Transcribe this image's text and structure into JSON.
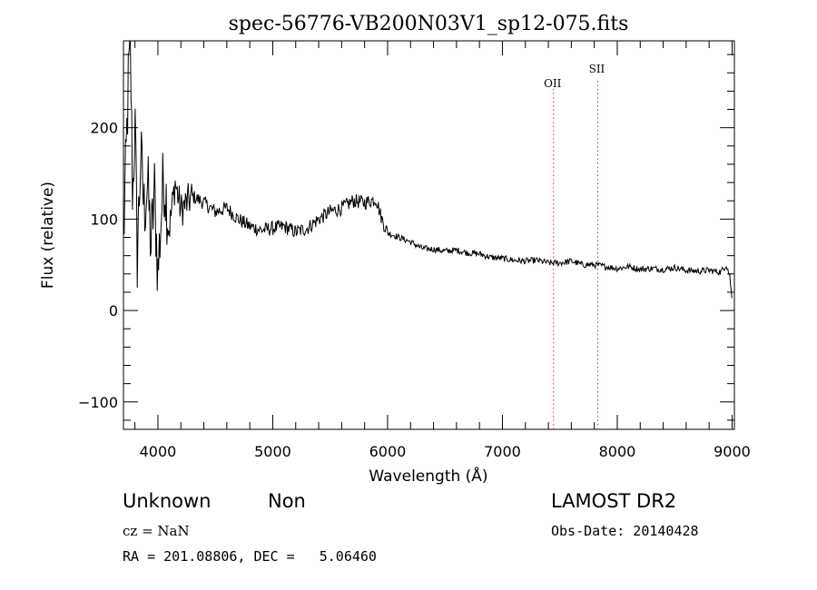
{
  "chart_data": {
    "type": "line",
    "title": "spec-56776-VB200N03V1_sp12-075.fits",
    "xlabel": "Wavelength (Å)",
    "ylabel": "Flux (relative)",
    "xlim": [
      3700,
      9020
    ],
    "ylim": [
      -130,
      295
    ],
    "x_ticks": [
      "4000",
      "5000",
      "6000",
      "7000",
      "8000",
      "9000"
    ],
    "y_ticks": [
      "200",
      "100",
      "0",
      "−100"
    ],
    "grid": false,
    "series": [
      {
        "x": [
          3700,
          3720,
          3740,
          3760,
          3780,
          3800,
          3820,
          3850,
          3880,
          3910,
          3940,
          3970,
          4000,
          4050,
          4100,
          4150,
          4200,
          4300,
          4400,
          4500,
          4600,
          4700,
          4800,
          4900,
          5000,
          5100,
          5200,
          5300,
          5400,
          5500,
          5600,
          5700,
          5800,
          5900,
          5950,
          6000,
          6100,
          6200,
          6300,
          6400,
          6500,
          6600,
          6700,
          6800,
          6900,
          7000,
          7100,
          7200,
          7300,
          7400,
          7500,
          7600,
          7700,
          7800,
          7900,
          8000,
          8100,
          8200,
          8300,
          8400,
          8500,
          8600,
          8700,
          8800,
          8900,
          8950,
          8980,
          9000
        ],
        "y": [
          80,
          150,
          240,
          300,
          120,
          210,
          60,
          170,
          110,
          140,
          70,
          130,
          40,
          150,
          90,
          140,
          110,
          125,
          118,
          108,
          112,
          100,
          92,
          88,
          90,
          92,
          86,
          90,
          100,
          108,
          112,
          120,
          118,
          122,
          100,
          85,
          80,
          75,
          68,
          67,
          65,
          66,
          63,
          62,
          58,
          57,
          55,
          54,
          55,
          52,
          52,
          54,
          50,
          50,
          48,
          46,
          48,
          45,
          46,
          45,
          47,
          44,
          43,
          44,
          42,
          50,
          38,
          10
        ]
      }
    ],
    "lines": [
      {
        "label": "OII",
        "x": 7445
      },
      {
        "label": "SII",
        "x": 7830
      }
    ]
  },
  "info": {
    "type1": "Unknown",
    "type2": "Non",
    "cz": "cz = NaN",
    "radec": "RA = 201.08806, DEC =   5.06460",
    "survey": "LAMOST DR2",
    "obsdate": "Obs-Date: 20140428"
  }
}
